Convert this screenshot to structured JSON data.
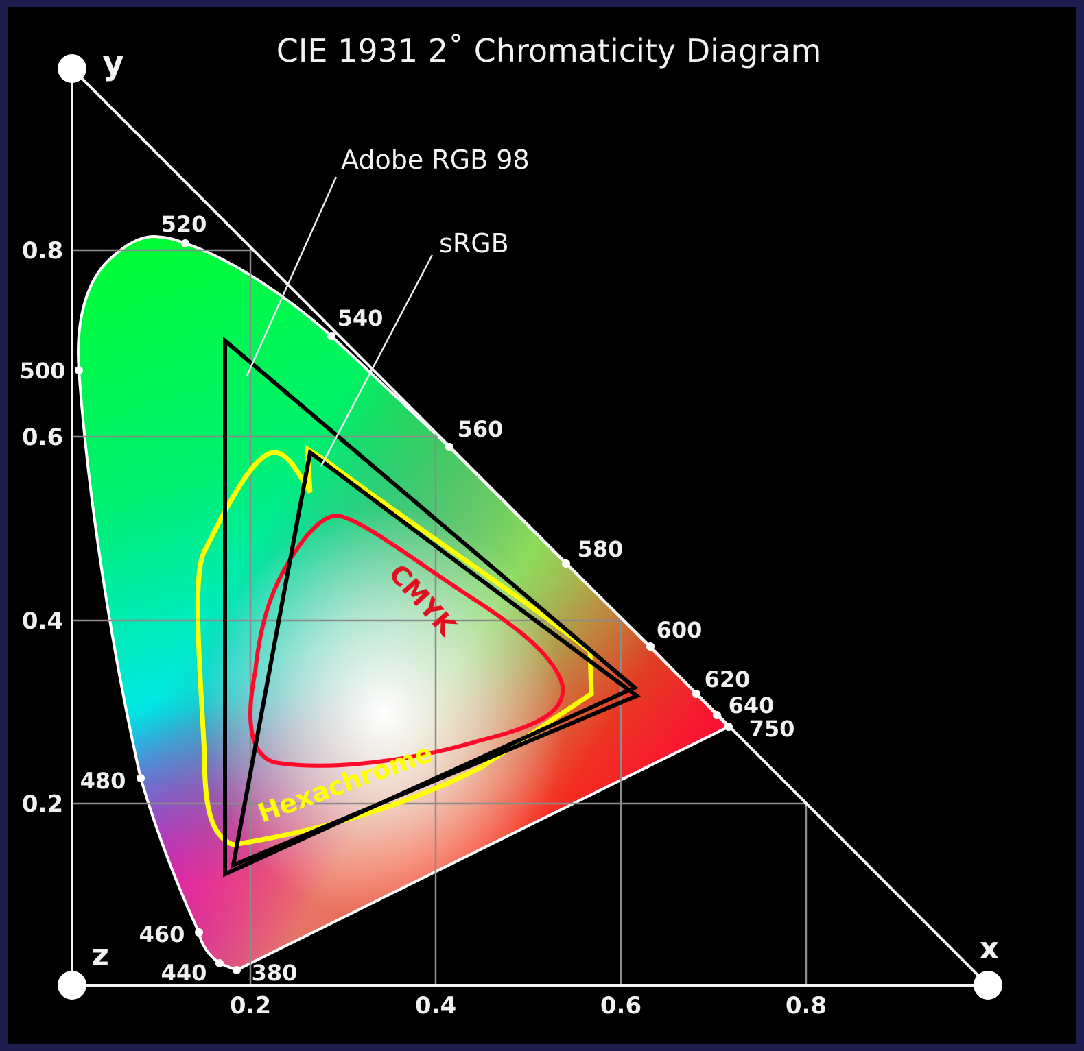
{
  "title": "CIE 1931 2˚ Chromaticity Diagram",
  "axes": {
    "y": "y",
    "x": "x",
    "z": "z"
  },
  "x_ticks": [
    "0.2",
    "0.4",
    "0.6",
    "0.8"
  ],
  "y_ticks": [
    "0.2",
    "0.4",
    "0.6",
    "0.8"
  ],
  "wavelengths": [
    "380",
    "440",
    "460",
    "480",
    "500",
    "520",
    "540",
    "560",
    "580",
    "600",
    "620",
    "640",
    "750"
  ],
  "gamuts": {
    "adobe_rgb": "Adobe RGB 98",
    "srgb": "sRGB",
    "cmyk": "CMYK",
    "hexachrome": "Hexachrome"
  }
}
